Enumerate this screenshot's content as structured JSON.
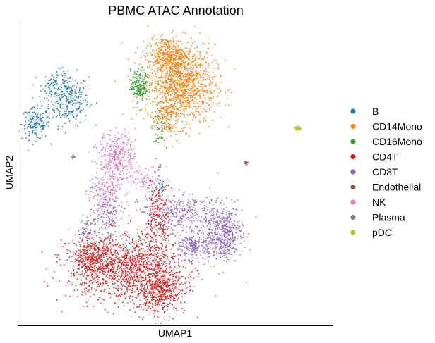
{
  "chart_data": {
    "type": "scatter",
    "title": "PBMC ATAC Annotation",
    "xlabel": "UMAP1",
    "ylabel": "UMAP2",
    "xlim": [
      0,
      100
    ],
    "ylim": [
      0,
      100
    ],
    "grid": false,
    "ticks": false,
    "legend_position": "right",
    "series": [
      {
        "name": "B",
        "color": "#1f77b4",
        "clusters": [
          {
            "cx": 16,
            "cy": 74,
            "sx": 3.2,
            "sy": 4.2,
            "n": 260
          },
          {
            "cx": 5.5,
            "cy": 66,
            "sx": 2.2,
            "sy": 2.6,
            "n": 170
          },
          {
            "cx": 12,
            "cy": 79,
            "sx": 2.2,
            "sy": 2.2,
            "n": 80
          },
          {
            "cx": 45.5,
            "cy": 45.5,
            "sx": 0.6,
            "sy": 0.8,
            "n": 20
          }
        ]
      },
      {
        "name": "CD14Mono",
        "color": "#ff7f0e",
        "clusters": [
          {
            "cx": 51.5,
            "cy": 79,
            "sx": 5.5,
            "sy": 6.5,
            "n": 1300
          },
          {
            "cx": 47.5,
            "cy": 89,
            "sx": 3.2,
            "sy": 2.6,
            "n": 320
          },
          {
            "cx": 47,
            "cy": 68,
            "sx": 1.8,
            "sy": 3.2,
            "n": 120
          }
        ]
      },
      {
        "name": "CD16Mono",
        "color": "#2ca02c",
        "clusters": [
          {
            "cx": 38.5,
            "cy": 78.5,
            "sx": 1.4,
            "sy": 2.6,
            "n": 190
          },
          {
            "cx": 45,
            "cy": 65,
            "sx": 1.2,
            "sy": 2.8,
            "n": 40
          }
        ]
      },
      {
        "name": "CD4T",
        "color": "#d62728",
        "clusters": [
          {
            "cx": 34,
            "cy": 19,
            "sx": 9,
            "sy": 5.5,
            "n": 1500
          },
          {
            "cx": 45,
            "cy": 11,
            "sx": 4,
            "sy": 3.5,
            "n": 500
          },
          {
            "cx": 23,
            "cy": 22,
            "sx": 2.5,
            "sy": 3,
            "n": 250
          },
          {
            "cx": 44.5,
            "cy": 35,
            "sx": 2.2,
            "sy": 7,
            "n": 300
          },
          {
            "cx": 72.5,
            "cy": 53,
            "sx": 0.3,
            "sy": 0.4,
            "n": 8
          }
        ]
      },
      {
        "name": "CD8T",
        "color": "#9467bd",
        "clusters": [
          {
            "cx": 65,
            "cy": 30,
            "sx": 3.2,
            "sy": 4.5,
            "n": 520
          },
          {
            "cx": 56,
            "cy": 26,
            "sx": 2.2,
            "sy": 2.2,
            "n": 200
          },
          {
            "cx": 52,
            "cy": 37,
            "sx": 6,
            "sy": 3,
            "n": 300
          },
          {
            "cx": 28,
            "cy": 37,
            "sx": 2.2,
            "sy": 3.5,
            "n": 150
          },
          {
            "cx": 22,
            "cy": 31,
            "sx": 1.2,
            "sy": 2.2,
            "n": 60
          }
        ]
      },
      {
        "name": "Endothelial",
        "color": "#8c564b",
        "clusters": [
          {
            "cx": 72.5,
            "cy": 53.2,
            "sx": 0.3,
            "sy": 0.3,
            "n": 12
          }
        ]
      },
      {
        "name": "NK",
        "color": "#e377c2",
        "clusters": [
          {
            "cx": 31.5,
            "cy": 56,
            "sx": 3,
            "sy": 3.5,
            "n": 330
          },
          {
            "cx": 27.5,
            "cy": 44,
            "sx": 2.5,
            "sy": 3.5,
            "n": 160
          },
          {
            "cx": 38,
            "cy": 48,
            "sx": 4.5,
            "sy": 2,
            "n": 90
          }
        ]
      },
      {
        "name": "Plasma",
        "color": "#7f7f7f",
        "clusters": [
          {
            "cx": 17.5,
            "cy": 55.2,
            "sx": 0.35,
            "sy": 0.3,
            "n": 12
          },
          {
            "cx": 51.5,
            "cy": 81.5,
            "sx": 0.3,
            "sy": 0.4,
            "n": 5
          }
        ]
      },
      {
        "name": "pDC",
        "color": "#bcbd22",
        "clusters": [
          {
            "cx": 89,
            "cy": 64.5,
            "sx": 0.45,
            "sy": 0.5,
            "n": 40
          }
        ]
      }
    ]
  }
}
